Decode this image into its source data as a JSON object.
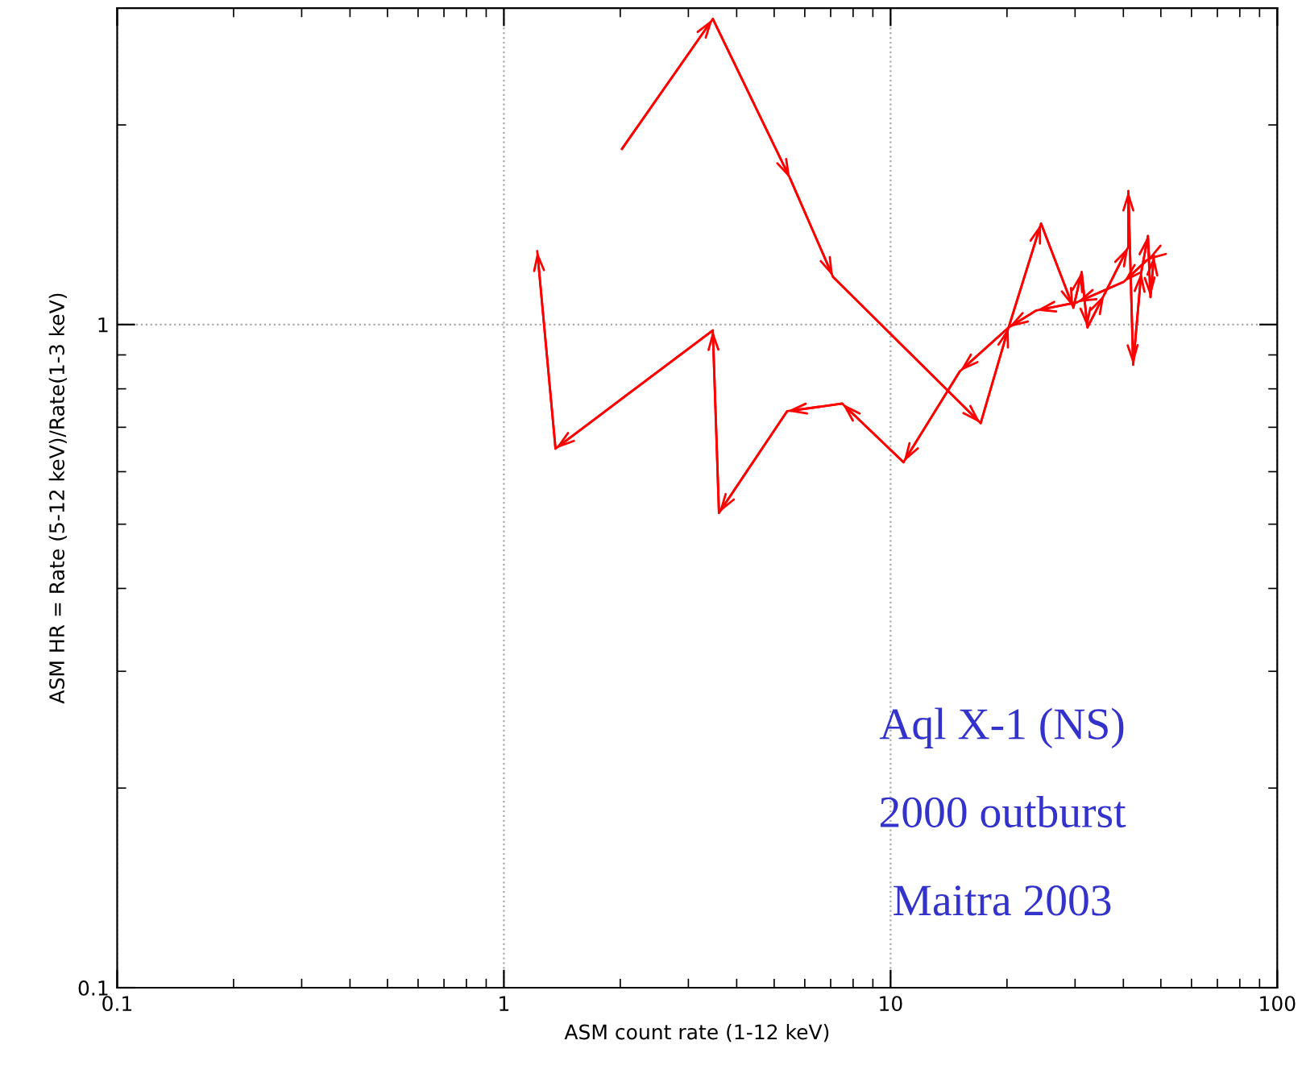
{
  "chart_data": {
    "type": "line",
    "xlabel": "ASM count rate (1-12 keV)",
    "ylabel": "ASM HR = Rate (5-12 keV)/Rate(1-3 keV)",
    "log": "xy",
    "xlim": [
      0.1,
      100
    ],
    "ylim": [
      0.1,
      3
    ],
    "xticks": [
      0.1,
      1,
      10,
      100
    ],
    "yticks": [
      0.1,
      1
    ],
    "grid": true,
    "line_style": "solid",
    "marker": "none",
    "series": [
      {
        "color": "#ff0000",
        "x": [
          2.02,
          3.47,
          5.5,
          7.1,
          17.1,
          20.2,
          24.5,
          29.7,
          31.2,
          32.3,
          35.7,
          41.2,
          41.2,
          42.4,
          44.5,
          46.3,
          47.0,
          48.0,
          46,
          40.1,
          30.3,
          23.8,
          20.2,
          15.1,
          10.8,
          7.5,
          5.4,
          3.6,
          3.47,
          1.36,
          1.22
        ],
        "values": [
          1.84,
          2.89,
          1.66,
          1.18,
          0.71,
          0.99,
          1.42,
          1.06,
          1.2,
          0.99,
          1.11,
          1.31,
          1.59,
          0.87,
          1.2,
          1.36,
          1.1,
          1.27,
          1.25,
          1.16,
          1.08,
          1.05,
          0.99,
          0.85,
          0.62,
          0.76,
          0.74,
          0.52,
          0.98,
          0.65,
          1.29
        ]
      }
    ],
    "annotations": [
      "Aql X-1 (NS)",
      "2000 outburst",
      "Maitra 2003"
    ]
  }
}
